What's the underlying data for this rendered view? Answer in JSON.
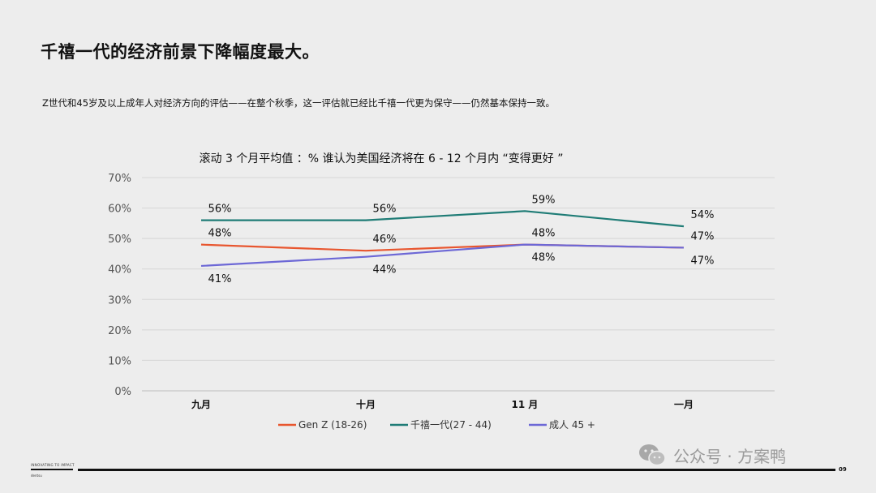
{
  "slide": {
    "title": "千禧一代的经济前景下降幅度最大。",
    "subtitle": "Z世代和45岁及以上成年人对经济方向的评估——在整个秋季，这一评估就已经比千禧一代更为保守——仍然基本保持一致。"
  },
  "chart_data": {
    "type": "line",
    "title": "滚动 3 个月平均值 ：% 谁认为美国经济将在 6 - 12 个月内 “变得更好 ”",
    "categories": [
      "九月",
      "十月",
      "11 月",
      "一月"
    ],
    "ylim": [
      0,
      70
    ],
    "yticks": [
      0,
      10,
      20,
      30,
      40,
      50,
      60,
      70
    ],
    "ytick_suffix": "%",
    "grid": true,
    "legend_position": "bottom",
    "series": [
      {
        "name": "Gen Z (18-26)",
        "color": "#e8562f",
        "values": [
          48,
          46,
          48,
          47
        ],
        "labels": [
          "48%",
          "46%",
          "48%",
          "47%"
        ],
        "label_side": "above"
      },
      {
        "name": "千禧一代(27 - 44)",
        "color": "#1f7c76",
        "values": [
          56,
          56,
          59,
          54
        ],
        "labels": [
          "56%",
          "56%",
          "59%",
          "54%"
        ],
        "label_side": "above"
      },
      {
        "name": "成人 45 +",
        "color": "#6d68d6",
        "values": [
          41,
          44,
          48,
          47
        ],
        "labels": [
          "41%",
          "44%",
          "48%",
          "47%"
        ],
        "label_side": "below"
      }
    ]
  },
  "footer": {
    "brand_tag": "INNOVATING TO IMPACT",
    "brand_sub": "dentsu",
    "page_number": "09"
  },
  "watermark": {
    "text": "公众号 · 方案鸭",
    "icon": "wechat-icon"
  }
}
